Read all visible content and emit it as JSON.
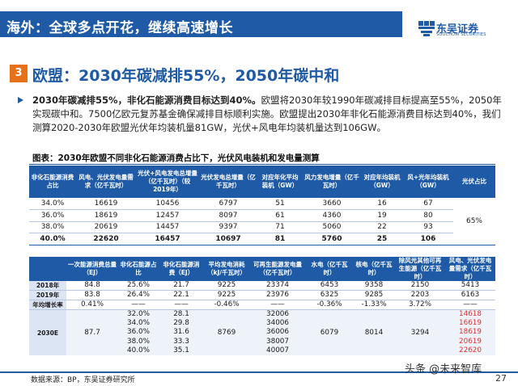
{
  "header": {
    "title": "海外：全球多点开花，继续高速增长",
    "logo_cn": "东吴证券",
    "logo_en": "SOOCHOW SECURITIES"
  },
  "section": {
    "number": "3",
    "title": "欧盟：2030年碳减排55%，2050年碳中和"
  },
  "paragraph": {
    "bold": "2030年碳减排55%，非化石能源消费目标达到40%。",
    "text": "欧盟将2030年较1990年碳减排目标提高至55%，2050年实现碳中和。7500亿欧元复苏基金确保减排目标顺利实施。欧盟提出2030年非化石能源消费目标达到40%，我们测算2020-2030年欧盟光伏年均装机量81GW，光伏+风电年均装机量达到106GW。"
  },
  "figure_title": "图表：2030年欧盟不同非化石能源消费占比下，光伏风电装机和发电量测算",
  "table1": {
    "headers": [
      "非化石能源消费占比",
      "风电、光伏发电量需求（亿千瓦时）",
      "光伏+风电发电总增量（亿千瓦时）（较2019年）",
      "光伏发电总增量（亿千瓦时）",
      "对应年化平均装机（GW）",
      "风力发电增量（亿千瓦时）",
      "对应年均装机（GW）",
      "风+光年均装机（GW）",
      "光伏占比"
    ],
    "rows": [
      [
        "34.0%",
        "16619",
        "10456",
        "6797",
        "51",
        "3660",
        "16",
        "67"
      ],
      [
        "36.0%",
        "18619",
        "12457",
        "8097",
        "61",
        "4360",
        "19",
        "80"
      ],
      [
        "38.0%",
        "20619",
        "14457",
        "9397",
        "71",
        "5060",
        "22",
        "93"
      ],
      [
        "40.0%",
        "22620",
        "16457",
        "10697",
        "81",
        "5760",
        "25",
        "106"
      ]
    ],
    "pv_share": "65%"
  },
  "table2": {
    "headers": [
      "",
      "一次能源消费总量（EJ）",
      "非化石能源占比",
      "非化石能源消费（EJ）",
      "平均发电消耗（kJ/千瓦时）",
      "可再生能源发电量（亿千瓦时）",
      "水电（亿千瓦时）",
      "核电（亿千瓦时）",
      "除风光其他可再生能源（亿千瓦时）",
      "风电、光伏发电量需求（亿千瓦时）"
    ],
    "row2018": [
      "2018年",
      "84.8",
      "25.6%",
      "21.7",
      "9225",
      "23374",
      "6453",
      "9358",
      "2150",
      "5413"
    ],
    "row2019": [
      "2019年",
      "83.8",
      "26.4%",
      "22.1",
      "9225",
      "23976",
      "6325",
      "9285",
      "2203",
      "6163"
    ],
    "row_growth": [
      "年均增长率",
      "0.41%",
      "——",
      "——",
      "-0.46%",
      "——",
      "-0.36%",
      "-1.33%",
      "3.72%",
      "——"
    ],
    "row2030": {
      "label": "2030E",
      "total": "87.7",
      "consumption_rate": "8769",
      "hydro": "6079",
      "nuclear": "8014",
      "other": "3294",
      "sub": [
        [
          "32.0%",
          "28.1",
          "32006",
          "14618"
        ],
        [
          "34.0%",
          "29.8",
          "34006",
          "16619"
        ],
        [
          "36.0%",
          "31.6",
          "36006",
          "18619"
        ],
        [
          "38.0%",
          "33.3",
          "38007",
          "20619"
        ],
        [
          "40.0%",
          "35.1",
          "40007",
          "22620"
        ]
      ]
    }
  },
  "footer": {
    "source": "数据来源：BP，东吴证券研究所",
    "watermark": "头条 @未来智库",
    "page": "27"
  }
}
